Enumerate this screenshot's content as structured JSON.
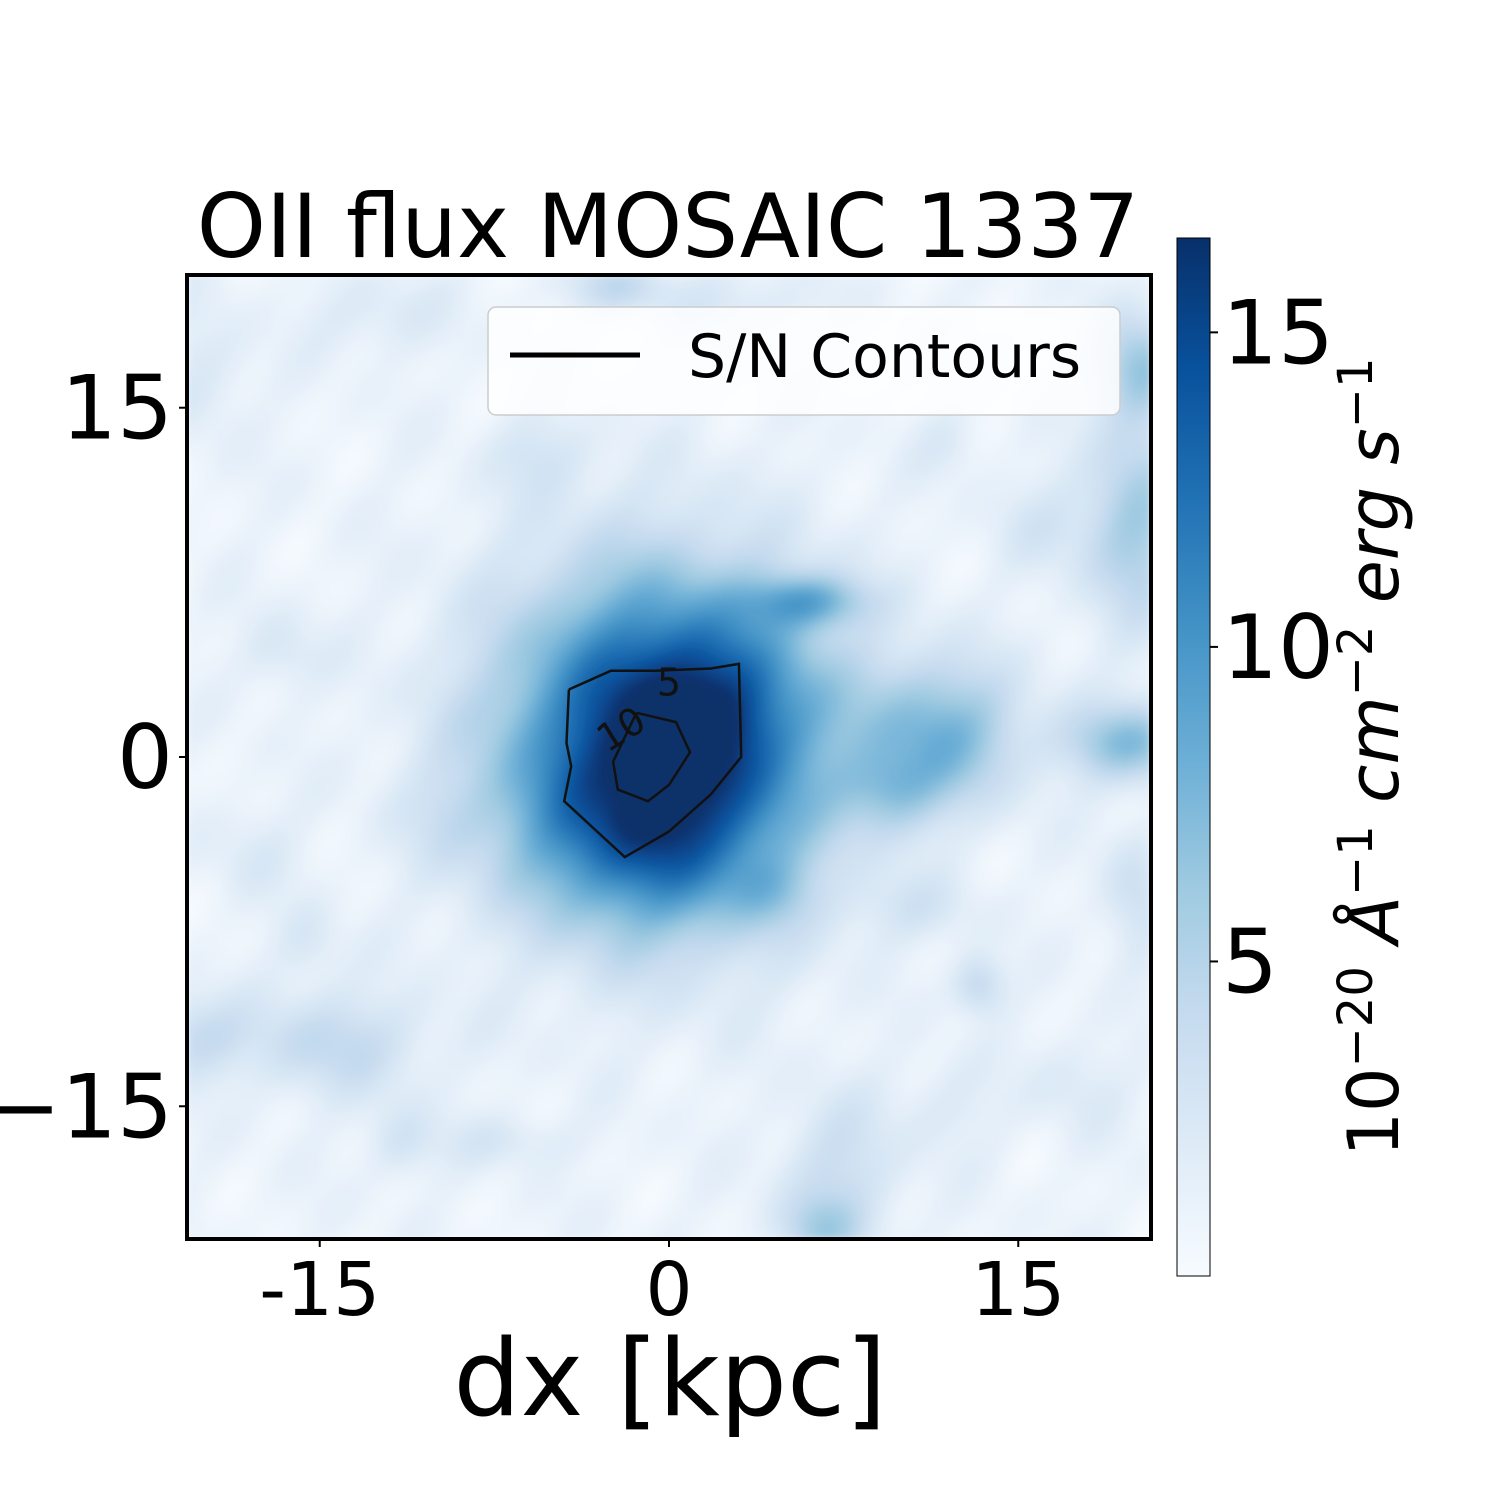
{
  "chart_data": {
    "type": "heatmap",
    "title": "OII flux MOSAIC 1337",
    "xlabel": "dx [kpc]",
    "ylabel": "",
    "xlim": [
      -20.7,
      20.7
    ],
    "ylim": [
      -20.7,
      20.7
    ],
    "x_ticks": [
      {
        "value": -15,
        "label": "-15"
      },
      {
        "value": 0,
        "label": "0"
      },
      {
        "value": 15,
        "label": "15"
      }
    ],
    "y_ticks": [
      {
        "value": 15,
        "label": "15"
      },
      {
        "value": 0,
        "label": "0"
      },
      {
        "value": -15,
        "label": "−15"
      }
    ],
    "colormap": "Blues",
    "colorbar": {
      "label": "10^{-20} Å^{-1} cm^{-2} erg s^{-1}",
      "vmin": 0,
      "vmax": 16.5,
      "ticks": [
        {
          "value": 5,
          "label": "5"
        },
        {
          "value": 10,
          "label": "10"
        },
        {
          "value": 15,
          "label": "15"
        }
      ]
    },
    "legend": {
      "position": "upper right",
      "entries": [
        {
          "label": "S/N Contours",
          "color": "#000000"
        }
      ]
    },
    "flux_features": [
      {
        "x": -0.5,
        "y": 0.5,
        "sx": 4.6,
        "sy": 5.0,
        "amp": 15.5
      },
      {
        "x": 2.2,
        "y": 2.2,
        "sx": 3.0,
        "sy": 2.6,
        "amp": 4.0
      },
      {
        "x": -1.0,
        "y": -3.6,
        "sx": 3.6,
        "sy": 2.4,
        "amp": 4.0
      },
      {
        "x": 11.7,
        "y": 1.0,
        "sx": 2.4,
        "sy": 2.2,
        "amp": 6.5
      },
      {
        "x": 9.5,
        "y": -1.5,
        "sx": 1.4,
        "sy": 1.2,
        "amp": 3.5
      },
      {
        "x": 6.0,
        "y": 6.7,
        "sx": 1.7,
        "sy": 0.8,
        "amp": 6.0
      },
      {
        "x": 20.0,
        "y": 10.0,
        "sx": 1.6,
        "sy": 3.0,
        "amp": 5.0
      },
      {
        "x": 20.2,
        "y": 16.7,
        "sx": 1.2,
        "sy": 1.6,
        "amp": 5.5
      },
      {
        "x": 19.8,
        "y": 0.6,
        "sx": 2.0,
        "sy": 1.2,
        "amp": 6.0
      },
      {
        "x": -14.5,
        "y": -12.3,
        "sx": 3.0,
        "sy": 1.6,
        "amp": 3.2
      },
      {
        "x": -20.5,
        "y": -12.0,
        "sx": 1.4,
        "sy": 1.2,
        "amp": 2.8
      },
      {
        "x": 13.3,
        "y": -9.8,
        "sx": 0.8,
        "sy": 0.9,
        "amp": 3.5
      },
      {
        "x": -2.2,
        "y": 20.2,
        "sx": 1.5,
        "sy": 0.8,
        "amp": 3.0
      },
      {
        "x": 7.3,
        "y": -18.0,
        "sx": 1.8,
        "sy": 2.5,
        "amp": 2.8
      },
      {
        "x": 6.5,
        "y": -20.3,
        "sx": 1.2,
        "sy": 1.0,
        "amp": 3.2
      },
      {
        "x": 20.0,
        "y": -6.0,
        "sx": 1.0,
        "sy": 2.0,
        "amp": 2.5
      },
      {
        "x": -11.5,
        "y": -16.5,
        "sx": 1.0,
        "sy": 1.2,
        "amp": 2.0
      },
      {
        "x": -7.0,
        "y": -16.5,
        "sx": 2.0,
        "sy": 0.8,
        "amp": 1.6
      },
      {
        "x": -15.5,
        "y": -8.0,
        "sx": 1.0,
        "sy": 1.2,
        "amp": 1.6
      },
      {
        "x": -16.7,
        "y": 4.5,
        "sx": 1.2,
        "sy": 1.2,
        "amp": 1.7
      },
      {
        "x": -20.0,
        "y": 16.5,
        "sx": 1.5,
        "sy": 2.0,
        "amp": 1.5
      },
      {
        "x": 16.0,
        "y": 10.0,
        "sx": 1.5,
        "sy": 1.5,
        "amp": 1.5
      },
      {
        "x": 12.0,
        "y": 13.5,
        "sx": 1.0,
        "sy": 1.0,
        "amp": 1.3
      },
      {
        "x": -5.5,
        "y": 13.0,
        "sx": 1.5,
        "sy": 1.2,
        "amp": 1.8
      },
      {
        "x": 3.0,
        "y": 19.5,
        "sx": 2.5,
        "sy": 1.0,
        "amp": 1.5
      },
      {
        "x": -12.5,
        "y": 19.0,
        "sx": 2.0,
        "sy": 1.2,
        "amp": 1.5
      },
      {
        "x": 10.5,
        "y": -6.5,
        "sx": 2.0,
        "sy": 1.0,
        "amp": 1.6
      },
      {
        "x": 4.5,
        "y": -5.8,
        "sx": 1.2,
        "sy": 1.0,
        "amp": 2.0
      },
      {
        "x": -9.5,
        "y": -2.5,
        "sx": 1.5,
        "sy": 1.5,
        "amp": 1.2
      },
      {
        "x": -18.0,
        "y": -4.0,
        "sx": 1.5,
        "sy": 1.5,
        "amp": 1.2
      },
      {
        "x": 17.5,
        "y": -14.0,
        "sx": 1.5,
        "sy": 1.5,
        "amp": 1.4
      },
      {
        "x": 12.0,
        "y": -15.0,
        "sx": 1.5,
        "sy": 1.5,
        "amp": 1.3
      }
    ],
    "contours": [
      {
        "level": "5",
        "points": [
          [
            -4.3,
            2.9
          ],
          [
            -2.5,
            3.7
          ],
          [
            -0.6,
            3.7
          ],
          [
            1.8,
            3.8
          ],
          [
            3.0,
            4.0
          ],
          [
            3.1,
            0.0
          ],
          [
            1.8,
            -1.6
          ],
          [
            0.0,
            -3.2
          ],
          [
            -1.9,
            -4.3
          ],
          [
            -4.5,
            -1.9
          ],
          [
            -4.2,
            -0.4
          ],
          [
            -4.4,
            0.6
          ],
          [
            -4.3,
            2.9
          ]
        ],
        "label_point": [
          0.0,
          3.1
        ]
      },
      {
        "level": "10",
        "points": [
          [
            -1.4,
            1.9
          ],
          [
            0.3,
            1.5
          ],
          [
            0.9,
            0.2
          ],
          [
            0.0,
            -1.2
          ],
          [
            -0.9,
            -1.9
          ],
          [
            -2.2,
            -1.4
          ],
          [
            -2.4,
            -0.2
          ],
          [
            -1.4,
            1.9
          ]
        ],
        "label_point": [
          -2.0,
          1.1
        ]
      }
    ]
  }
}
